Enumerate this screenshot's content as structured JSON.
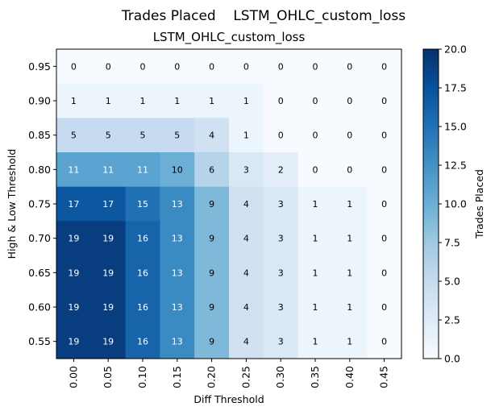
{
  "suptitle": "Trades Placed    LSTM_OHLC_custom_loss",
  "chart_data": {
    "type": "heatmap",
    "title": "LSTM_OHLC_custom_loss",
    "xlabel": "Diff Threshold",
    "ylabel": "High & Low Threshold",
    "x_ticks": [
      "0.00",
      "0.05",
      "0.10",
      "0.15",
      "0.20",
      "0.25",
      "0.30",
      "0.35",
      "0.40",
      "0.45"
    ],
    "y_ticks": [
      "0.95",
      "0.90",
      "0.85",
      "0.80",
      "0.75",
      "0.70",
      "0.65",
      "0.60",
      "0.55"
    ],
    "values": [
      [
        0,
        0,
        0,
        0,
        0,
        0,
        0,
        0,
        0,
        0
      ],
      [
        1,
        1,
        1,
        1,
        1,
        1,
        0,
        0,
        0,
        0
      ],
      [
        5,
        5,
        5,
        5,
        4,
        1,
        0,
        0,
        0,
        0
      ],
      [
        11,
        11,
        11,
        10,
        6,
        3,
        2,
        0,
        0,
        0
      ],
      [
        17,
        17,
        15,
        13,
        9,
        4,
        3,
        1,
        1,
        0
      ],
      [
        19,
        19,
        16,
        13,
        9,
        4,
        3,
        1,
        1,
        0
      ],
      [
        19,
        19,
        16,
        13,
        9,
        4,
        3,
        1,
        1,
        0
      ],
      [
        19,
        19,
        16,
        13,
        9,
        4,
        3,
        1,
        1,
        0
      ],
      [
        19,
        19,
        16,
        13,
        9,
        4,
        3,
        1,
        1,
        0
      ]
    ],
    "colorbar": {
      "label": "Trades Placed",
      "range": [
        0,
        20
      ],
      "ticks": [
        "0.0",
        "2.5",
        "5.0",
        "7.5",
        "10.0",
        "12.5",
        "15.0",
        "17.5",
        "20.0"
      ],
      "colormap": "Blues"
    }
  }
}
